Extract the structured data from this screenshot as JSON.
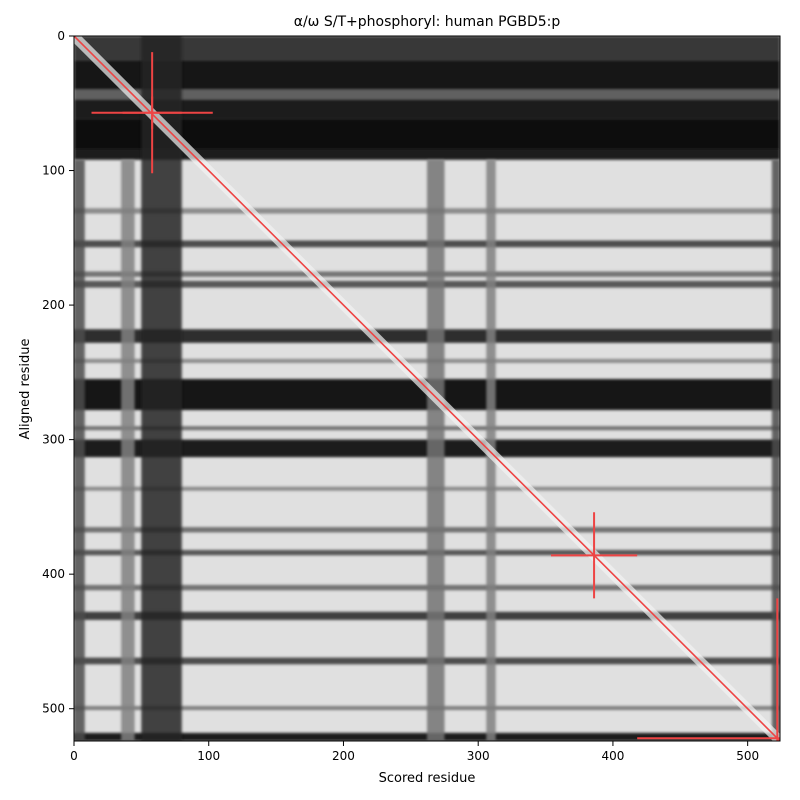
{
  "chart_data": {
    "type": "heatmap",
    "title": "α/ω S/T+phosphoryl: human PGBD5:p",
    "xlabel": "Scored residue",
    "ylabel": "Aligned residue",
    "xlim": [
      0,
      524
    ],
    "ylim": [
      524,
      0
    ],
    "x_ticks": [
      0,
      100,
      200,
      300,
      400,
      500
    ],
    "y_ticks": [
      0,
      100,
      200,
      300,
      400,
      500
    ],
    "colormap": "grayscale",
    "grid": false,
    "diagonal_color": "#ee4444",
    "background_value": 0.88,
    "dark_row_bands": [
      {
        "from": 0,
        "to": 18,
        "value": 0.22
      },
      {
        "from": 18,
        "to": 40,
        "value": 0.08
      },
      {
        "from": 40,
        "to": 47,
        "value": 0.38
      },
      {
        "from": 47,
        "to": 62,
        "value": 0.12
      },
      {
        "from": 62,
        "to": 84,
        "value": 0.03
      },
      {
        "from": 84,
        "to": 92,
        "value": 0.12
      },
      {
        "from": 128,
        "to": 132,
        "value": 0.55
      },
      {
        "from": 152,
        "to": 157,
        "value": 0.3
      },
      {
        "from": 175,
        "to": 179,
        "value": 0.45
      },
      {
        "from": 182,
        "to": 187,
        "value": 0.35
      },
      {
        "from": 218,
        "to": 228,
        "value": 0.18
      },
      {
        "from": 240,
        "to": 243,
        "value": 0.55
      },
      {
        "from": 255,
        "to": 278,
        "value": 0.07
      },
      {
        "from": 290,
        "to": 293,
        "value": 0.45
      },
      {
        "from": 300,
        "to": 313,
        "value": 0.1
      },
      {
        "from": 335,
        "to": 338,
        "value": 0.55
      },
      {
        "from": 365,
        "to": 369,
        "value": 0.45
      },
      {
        "from": 382,
        "to": 386,
        "value": 0.35
      },
      {
        "from": 408,
        "to": 412,
        "value": 0.45
      },
      {
        "from": 428,
        "to": 434,
        "value": 0.25
      },
      {
        "from": 462,
        "to": 467,
        "value": 0.3
      },
      {
        "from": 498,
        "to": 501,
        "value": 0.5
      },
      {
        "from": 518,
        "to": 524,
        "value": 0.12
      }
    ],
    "dark_column_bands": [
      {
        "from": 0,
        "to": 8,
        "value": 0.3
      },
      {
        "from": 35,
        "to": 45,
        "value": 0.5
      },
      {
        "from": 50,
        "to": 80,
        "value": 0.15
      },
      {
        "from": 262,
        "to": 275,
        "value": 0.45
      },
      {
        "from": 306,
        "to": 313,
        "value": 0.5
      },
      {
        "from": 518,
        "to": 524,
        "value": 0.3
      }
    ],
    "markers": [
      {
        "x": 58,
        "y": 57,
        "half_width": 45,
        "half_height": 45
      },
      {
        "x": 58,
        "y": 57,
        "half_width": 22,
        "half_height": 12
      },
      {
        "x": 386,
        "y": 386,
        "half_width": 32,
        "half_height": 32
      },
      {
        "x": 522,
        "y": 522,
        "half_width": 0,
        "half_height": 104
      },
      {
        "x": 522,
        "y": 522,
        "half_width": 104,
        "half_height": 0
      }
    ]
  }
}
